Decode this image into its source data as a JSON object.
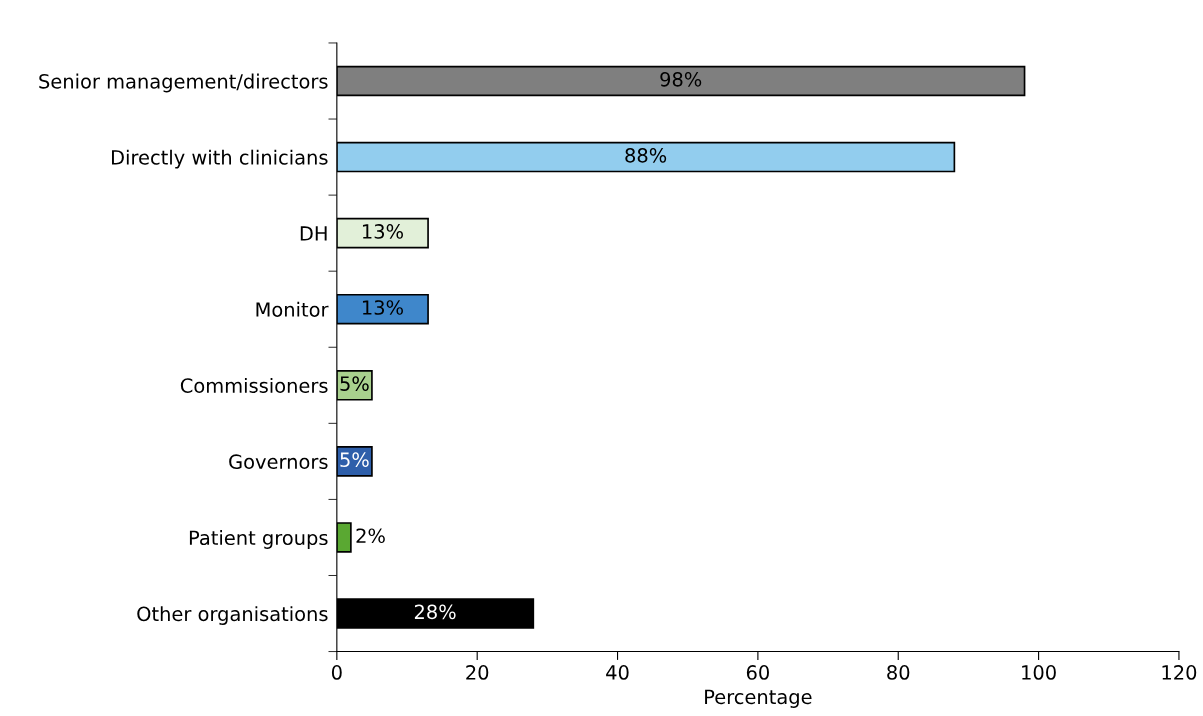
{
  "chart_data": {
    "type": "bar",
    "orientation": "horizontal",
    "xlabel": "Percentage",
    "categories": [
      "Senior management/directors",
      "Directly with clinicians",
      "DH",
      "Monitor",
      "Commissioners",
      "Governors",
      "Patient groups",
      "Other organisations"
    ],
    "values": [
      98,
      88,
      13,
      13,
      5,
      5,
      2,
      28
    ],
    "value_labels": [
      "98%",
      "88%",
      "13%",
      "13%",
      "5%",
      "5%",
      "2%",
      "28%"
    ],
    "colors": [
      "#7f7f7f",
      "#92cdee",
      "#e2f0d9",
      "#3f87cb",
      "#a9d18e",
      "#2e5faa",
      "#5aa832",
      "#000000"
    ],
    "xlim": [
      0,
      120
    ],
    "xticks": [
      0,
      20,
      40,
      60,
      80,
      100,
      120
    ],
    "grid": false,
    "legend": false
  }
}
